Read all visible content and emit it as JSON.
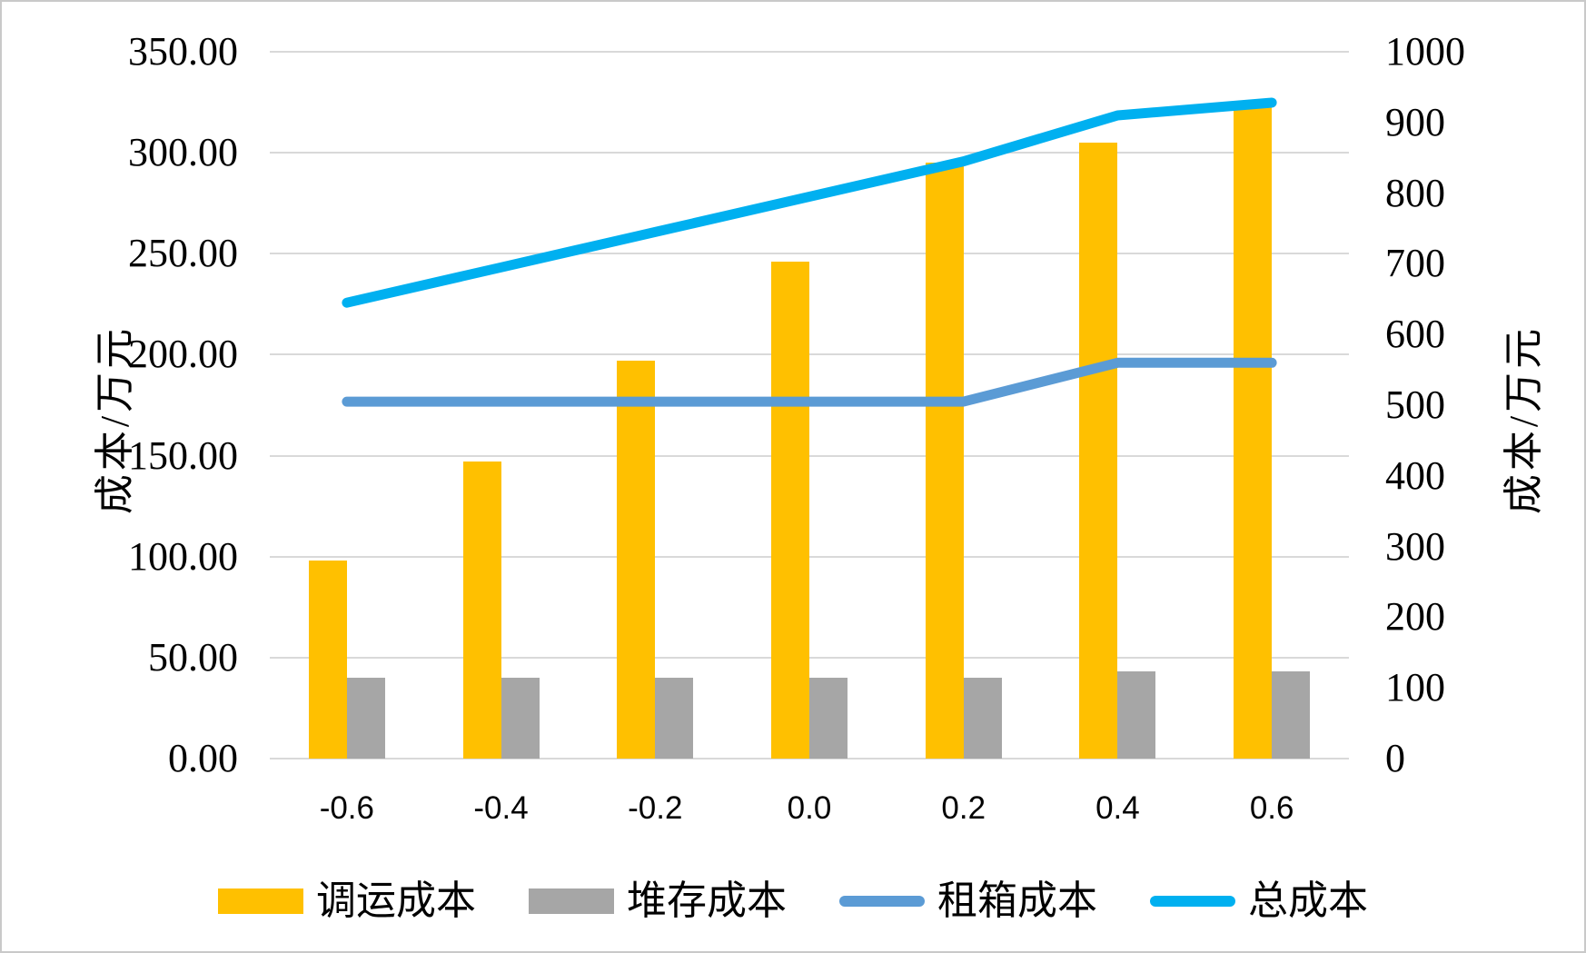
{
  "chart_data": {
    "type": "combo-bar-line-dual-axis",
    "categories": [
      "-0.6",
      "-0.4",
      "-0.2",
      "0.0",
      "0.2",
      "0.4",
      "0.6"
    ],
    "series": [
      {
        "name": "调运成本",
        "type": "bar",
        "axis": "left",
        "color": "#FFC000",
        "values": [
          98,
          147,
          197,
          246,
          295,
          305,
          325
        ]
      },
      {
        "name": "堆存成本",
        "type": "bar",
        "axis": "left",
        "color": "#A6A6A6",
        "values": [
          40,
          40,
          40,
          40,
          40,
          43,
          43
        ]
      },
      {
        "name": "租箱成本",
        "type": "line",
        "axis": "right",
        "color": "#5B9BD5",
        "values": [
          505,
          505,
          505,
          505,
          505,
          560,
          560
        ]
      },
      {
        "name": "总成本",
        "type": "line",
        "axis": "right",
        "color": "#00B0F0",
        "values": [
          645,
          695,
          745,
          795,
          845,
          910,
          928
        ]
      }
    ],
    "left_axis": {
      "title": "成本/万元",
      "min": 0,
      "max": 350,
      "ticks": [
        "350.00",
        "300.00",
        "250.00",
        "200.00",
        "150.00",
        "100.00",
        "50.00",
        "0.00"
      ]
    },
    "right_axis": {
      "title": "成本/万元",
      "min": 0,
      "max": 1000,
      "ticks": [
        "1000",
        "900",
        "800",
        "700",
        "600",
        "500",
        "400",
        "300",
        "200",
        "100",
        "0"
      ]
    },
    "grid": {
      "show": true,
      "color": "#D9D9D9"
    },
    "legend_position": "bottom",
    "background": "#FFFFFF",
    "border_color": "#C9C9C9"
  }
}
